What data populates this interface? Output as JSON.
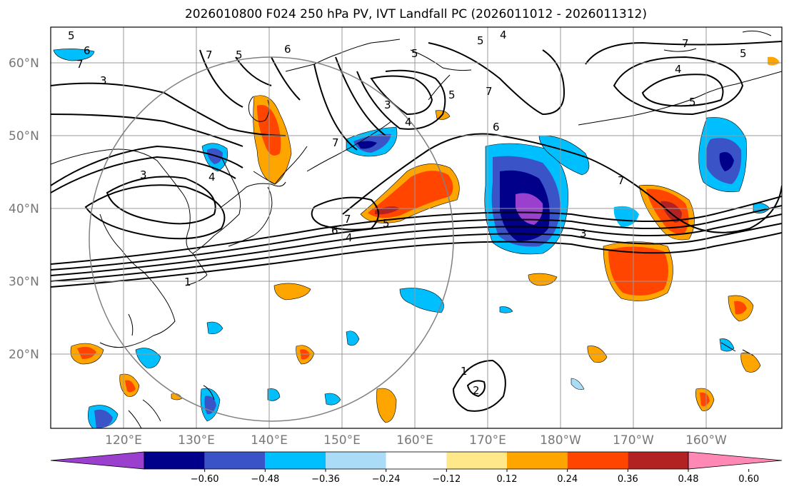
{
  "title": "2026010800 F024 250 hPa PV, IVT Landfall PC (2026011012 - 2026011312)",
  "lat_labels": [
    "60°N",
    "50°N",
    "40°N",
    "30°N",
    "20°N"
  ],
  "lon_labels": [
    "120°E",
    "130°E",
    "140°E",
    "150°E",
    "160°E",
    "170°E",
    "180°W",
    "170°W",
    "160°W"
  ],
  "colorbar": {
    "ticks": [
      "−0.60",
      "−0.48",
      "−0.36",
      "−0.24",
      "−0.12",
      "0.12",
      "0.24",
      "0.36",
      "0.48",
      "0.60"
    ],
    "colors": [
      "#9b3fcf",
      "#00008b",
      "#3a54c8",
      "#00bfff",
      "#aadbf7",
      "#ffffff",
      "#ffe88a",
      "#ffa500",
      "#ff4500",
      "#b22222",
      "#ff89b4"
    ]
  },
  "contour_labels": [
    "5",
    "6",
    "7",
    "5",
    "6",
    "7",
    "5",
    "4",
    "5",
    "7",
    "4",
    "5",
    "3",
    "5",
    "4",
    "6",
    "7",
    "7",
    "5",
    "3",
    "3",
    "4",
    "7",
    "6",
    "4",
    "5",
    "3",
    "1",
    "7",
    "1",
    "2"
  ],
  "colors": {
    "land": "#000000",
    "grid": "#999999",
    "circle": "#808080"
  }
}
